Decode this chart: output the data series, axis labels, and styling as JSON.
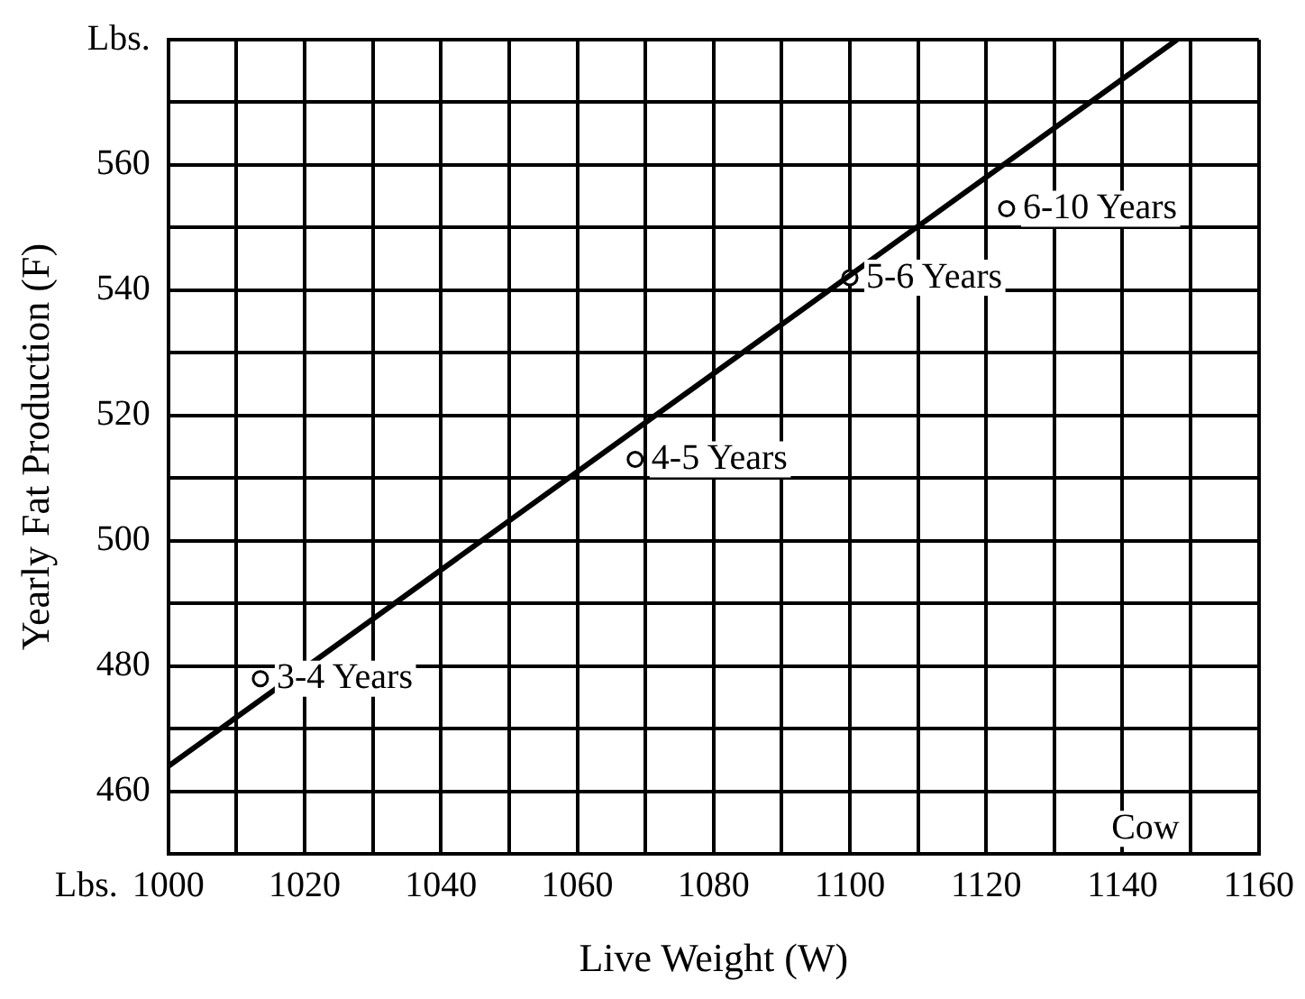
{
  "chart_data": {
    "type": "scatter",
    "xlabel": "Live Weight (W)",
    "ylabel": "Yearly Fat Production (F)",
    "xlim": [
      1000,
      1160
    ],
    "ylim": [
      450,
      580
    ],
    "xticks": [
      1000,
      {
        "value": 1010,
        "label": null
      },
      1020,
      {
        "value": 1030,
        "label": null
      },
      1040,
      {
        "value": 1050,
        "label": null
      },
      1060,
      {
        "value": 1070,
        "label": null
      },
      1080,
      {
        "value": 1090,
        "label": null
      },
      1100,
      {
        "value": 1110,
        "label": null
      },
      1120,
      {
        "value": 1130,
        "label": null
      },
      1140,
      {
        "value": 1150,
        "label": null
      },
      1160
    ],
    "yticks": [
      {
        "value": 450,
        "label": null
      },
      460,
      {
        "value": 470,
        "label": null
      },
      480,
      {
        "value": 490,
        "label": null
      },
      500,
      {
        "value": 510,
        "label": null
      },
      520,
      {
        "value": 530,
        "label": null
      },
      540,
      {
        "value": 550,
        "label": null
      },
      560,
      {
        "value": 570,
        "label": null
      },
      {
        "value": 580,
        "label": "Lbs."
      }
    ],
    "grid": true,
    "series": [
      {
        "type": "line",
        "color": "#000000",
        "x": [
          1000,
          1148
        ],
        "values": [
          464,
          580
        ],
        "line_style": "solid"
      },
      {
        "color": "#000000",
        "marker": "circle",
        "x": [
          1013.5,
          1068.5,
          1100,
          1123
        ],
        "values": [
          478,
          513,
          542,
          553
        ]
      }
    ],
    "annotations": [
      "Lbs.",
      "Cow",
      {
        "text": "3-4 Years",
        "x": 1013.5,
        "y": 478
      },
      {
        "text": "4-5 Years",
        "x": 1068.5,
        "y": 513
      },
      {
        "text": "5-6 Years",
        "x": 1100,
        "y": 542
      },
      {
        "text": "6-10 Years",
        "x": 1123,
        "y": 553
      }
    ]
  }
}
